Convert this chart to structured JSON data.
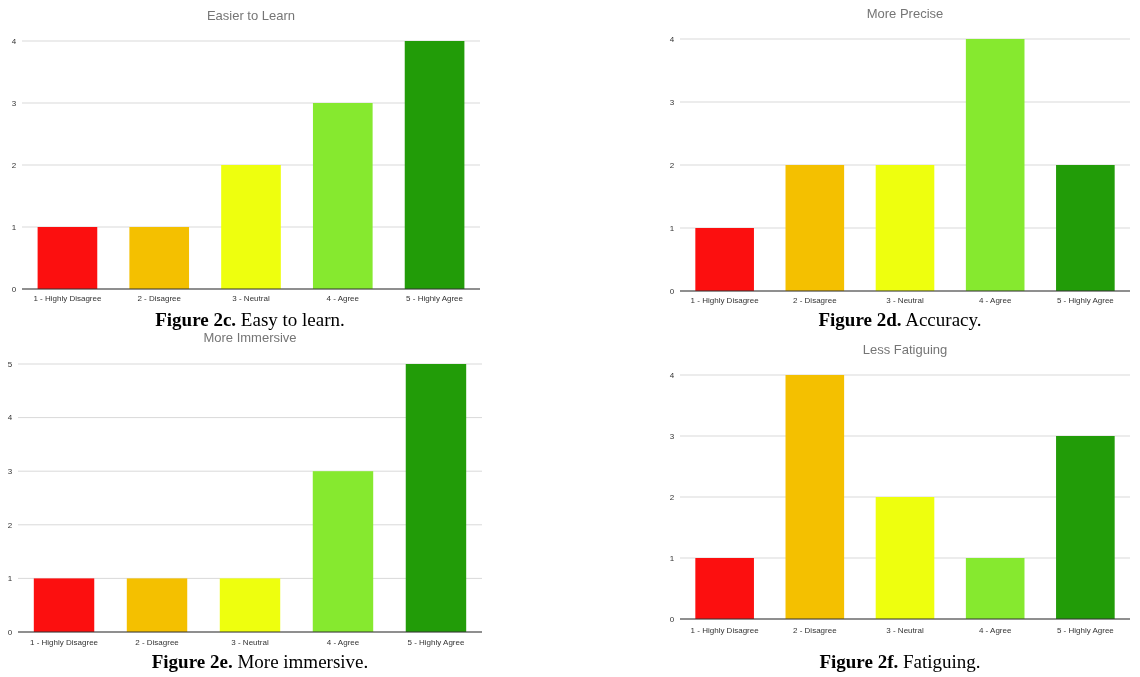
{
  "chart_data": [
    {
      "type": "bar",
      "title": "Easier to Learn",
      "categories": [
        "1 - Highly Disagree",
        "2 - Disagree",
        "3 - Neutral",
        "4 - Agree",
        "5 - Highly Agree"
      ],
      "values": [
        1,
        1,
        2,
        3,
        4
      ],
      "colors": [
        "#fc0f0f",
        "#f4c000",
        "#eeff0e",
        "#86e92f",
        "#229c08"
      ],
      "ylim": [
        0,
        4
      ],
      "yticks": [
        0,
        1,
        2,
        3,
        4
      ],
      "grid": "y",
      "annotations": [
        "Figure 2c. Easy to learn."
      ]
    },
    {
      "type": "bar",
      "title": "More Precise",
      "categories": [
        "1 - Highly Disagree",
        "2 - Disagree",
        "3 - Neutral",
        "4 - Agree",
        "5 - Highly Agree"
      ],
      "values": [
        1,
        2,
        2,
        4,
        2
      ],
      "colors": [
        "#fc0f0f",
        "#f4c000",
        "#eeff0e",
        "#86e92f",
        "#229c08"
      ],
      "ylim": [
        0,
        4
      ],
      "yticks": [
        0,
        1,
        2,
        3,
        4
      ],
      "grid": "y",
      "annotations": [
        "Figure 2d. Accuracy."
      ]
    },
    {
      "type": "bar",
      "title": "More Immersive",
      "categories": [
        "1 - Highly Disagree",
        "2 - Disagree",
        "3 - Neutral",
        "4 - Agree",
        "5 - Highly Agree"
      ],
      "values": [
        1,
        1,
        1,
        3,
        5
      ],
      "colors": [
        "#fc0f0f",
        "#f4c000",
        "#eeff0e",
        "#86e92f",
        "#229c08"
      ],
      "ylim": [
        0,
        5
      ],
      "yticks": [
        0,
        1,
        2,
        3,
        4,
        5
      ],
      "grid": "y",
      "annotations": [
        "Figure 2e. More immersive."
      ]
    },
    {
      "type": "bar",
      "title": "Less Fatiguing",
      "categories": [
        "1 - Highly Disagree",
        "2 - Disagree",
        "3 - Neutral",
        "4 - Agree",
        "5 - Highly Agree"
      ],
      "values": [
        1,
        4,
        2,
        1,
        3
      ],
      "colors": [
        "#fc0f0f",
        "#f4c000",
        "#eeff0e",
        "#86e92f",
        "#229c08"
      ],
      "ylim": [
        0,
        4
      ],
      "yticks": [
        0,
        1,
        2,
        3,
        4
      ],
      "grid": "y",
      "annotations": [
        "Figure 2f. Fatiguing."
      ]
    }
  ]
}
